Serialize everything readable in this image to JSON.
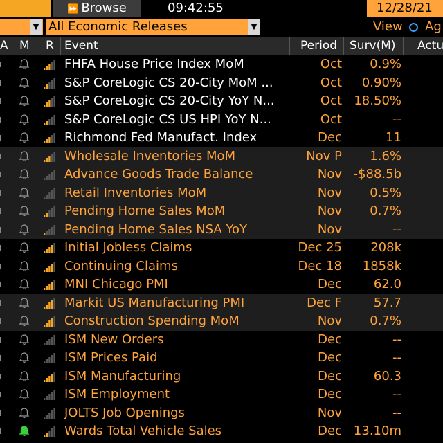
{
  "topbar": {
    "browse_label": "Browse",
    "browse_icon": "play-icon",
    "time": "09:42:55",
    "date": "12/28/21"
  },
  "filter": {
    "category": "All Economic Releases",
    "view_label": "View",
    "view_option": "Ag"
  },
  "columns": {
    "a": "A",
    "m": "M",
    "r": "R",
    "event": "Event",
    "period": "Period",
    "surv": "Surv(M)",
    "actual": "Actu"
  },
  "colors": {
    "accent": "#ffa33a",
    "bar_on": "#f5a623",
    "bar_off": "#555555",
    "bell_active": "#3ccf3c",
    "background": "#000000",
    "alt_row": "#1e1e1e"
  },
  "rows": [
    {
      "event": "FHFA House Price Index MoM",
      "period": "Oct",
      "surv": "0.9%",
      "relevance": 3,
      "event_color": "white",
      "shade": false,
      "bell": "off"
    },
    {
      "event": "S&P CoreLogic CS 20-City MoM ...",
      "period": "Oct",
      "surv": "0.90%",
      "relevance": 2,
      "event_color": "white",
      "shade": false,
      "bell": "off"
    },
    {
      "event": "S&P CoreLogic CS 20-City YoY N...",
      "period": "Oct",
      "surv": "18.50%",
      "relevance": 3,
      "event_color": "white",
      "shade": false,
      "bell": "off"
    },
    {
      "event": "S&P CoreLogic CS US HPI YoY N...",
      "period": "Oct",
      "surv": "--",
      "relevance": 2,
      "event_color": "white",
      "shade": false,
      "bell": "off"
    },
    {
      "event": "Richmond Fed Manufact. Index",
      "period": "Dec",
      "surv": "11",
      "relevance": 3,
      "event_color": "white",
      "shade": false,
      "bell": "off"
    },
    {
      "event": "Wholesale Inventories MoM",
      "period": "Nov P",
      "surv": "1.6%",
      "relevance": 3,
      "event_color": "orange",
      "shade": true,
      "bell": "off"
    },
    {
      "event": "Advance Goods Trade Balance",
      "period": "Nov",
      "surv": "-$88.5b",
      "relevance": 0,
      "event_color": "orange",
      "shade": true,
      "bell": "off"
    },
    {
      "event": "Retail Inventories MoM",
      "period": "Nov",
      "surv": "0.5%",
      "relevance": 0,
      "event_color": "orange",
      "shade": true,
      "bell": "off"
    },
    {
      "event": "Pending Home Sales MoM",
      "period": "Nov",
      "surv": "0.7%",
      "relevance": 2,
      "event_color": "orange",
      "shade": true,
      "bell": "off"
    },
    {
      "event": "Pending Home Sales NSA YoY",
      "period": "Nov",
      "surv": "--",
      "relevance": 1,
      "event_color": "orange",
      "shade": true,
      "bell": "off"
    },
    {
      "event": "Initial Jobless Claims",
      "period": "Dec 25",
      "surv": "208k",
      "relevance": 4,
      "event_color": "orange",
      "shade": false,
      "bell": "off"
    },
    {
      "event": "Continuing Claims",
      "period": "Dec 18",
      "surv": "1858k",
      "relevance": 4,
      "event_color": "orange",
      "shade": false,
      "bell": "off"
    },
    {
      "event": "MNI Chicago PMI",
      "period": "Dec",
      "surv": "62.0",
      "relevance": 4,
      "event_color": "orange",
      "shade": false,
      "bell": "off"
    },
    {
      "event": "Markit US Manufacturing PMI",
      "period": "Dec F",
      "surv": "57.7",
      "relevance": 4,
      "event_color": "orange",
      "shade": true,
      "bell": "off"
    },
    {
      "event": "Construction Spending MoM",
      "period": "Nov",
      "surv": "0.7%",
      "relevance": 4,
      "event_color": "orange",
      "shade": true,
      "bell": "off"
    },
    {
      "event": "ISM New Orders",
      "period": "Dec",
      "surv": "--",
      "relevance": 0,
      "event_color": "orange",
      "shade": false,
      "bell": "off"
    },
    {
      "event": "ISM Prices Paid",
      "period": "Dec",
      "surv": "--",
      "relevance": 0,
      "event_color": "orange",
      "shade": false,
      "bell": "off"
    },
    {
      "event": "ISM Manufacturing",
      "period": "Dec",
      "surv": "60.3",
      "relevance": 4,
      "event_color": "orange",
      "shade": false,
      "bell": "off"
    },
    {
      "event": "ISM Employment",
      "period": "Dec",
      "surv": "--",
      "relevance": 0,
      "event_color": "orange",
      "shade": false,
      "bell": "off"
    },
    {
      "event": "JOLTS Job Openings",
      "period": "Nov",
      "surv": "--",
      "relevance": 0,
      "event_color": "orange",
      "shade": false,
      "bell": "off"
    },
    {
      "event": "Wards Total Vehicle Sales",
      "period": "Dec",
      "surv": "13.10m",
      "relevance": 2,
      "event_color": "orange",
      "shade": false,
      "bell": "on"
    }
  ]
}
